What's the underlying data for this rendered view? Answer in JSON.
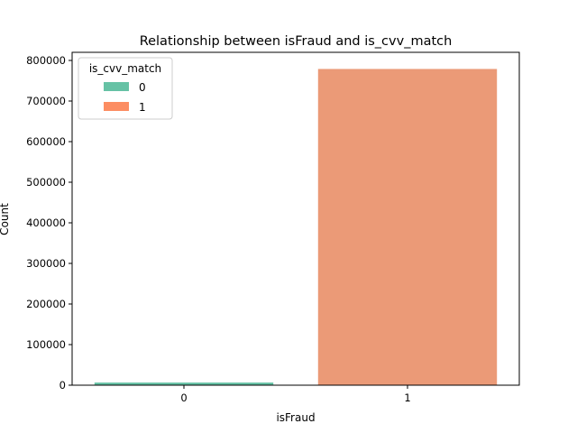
{
  "chart_data": {
    "type": "bar",
    "title": "Relationship between isFraud and is_cvv_match",
    "xlabel": "isFraud",
    "ylabel": "Count",
    "categories": [
      "0",
      "1"
    ],
    "ylim": [
      0,
      800000
    ],
    "yticks": [
      0,
      100000,
      200000,
      300000,
      400000,
      500000,
      600000,
      700000,
      800000
    ],
    "grid": false,
    "legend": {
      "title": "is_cvv_match",
      "placement": "top-left",
      "entries": [
        "0",
        "1"
      ]
    },
    "series": [
      {
        "name": "0",
        "color": "#66c2a5",
        "values": [
          0,
          6500
        ]
      },
      {
        "name": "1",
        "color": "#fc8d62",
        "values": [
          1,
          779000
        ]
      }
    ],
    "bar_colors": [
      "#66c2a5",
      "#eb9a77"
    ],
    "bars": [
      {
        "category": "0",
        "hue": "0",
        "value": 6500
      },
      {
        "category": "1",
        "hue": "1",
        "value": 779000
      }
    ]
  }
}
